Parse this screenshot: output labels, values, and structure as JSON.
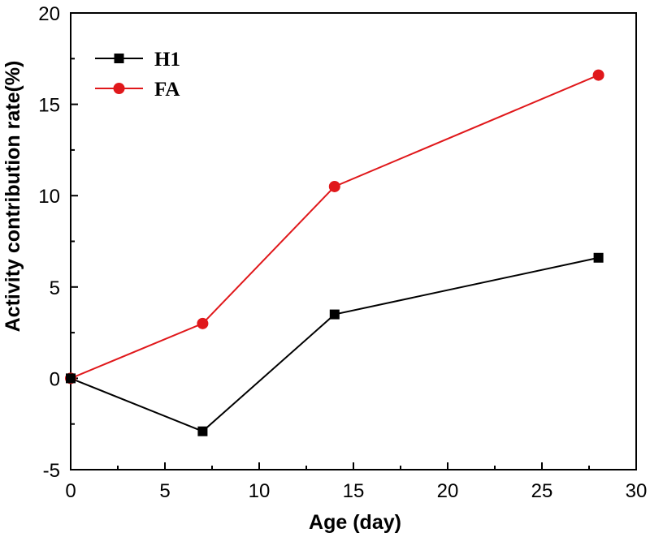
{
  "chart_data": {
    "type": "line",
    "xlabel": "Age (day)",
    "ylabel": "Activity contribution rate(%)",
    "xlim": [
      0,
      30
    ],
    "ylim": [
      -5,
      20
    ],
    "xticks": [
      0,
      5,
      10,
      15,
      20,
      25,
      30
    ],
    "yticks": [
      -5,
      0,
      5,
      10,
      15,
      20
    ],
    "grid": false,
    "legend_position": "top-left",
    "series": [
      {
        "name": "H1",
        "marker": "square",
        "color": "#000000",
        "x": [
          0,
          7,
          14,
          28
        ],
        "y": [
          0,
          -2.9,
          3.5,
          6.6
        ]
      },
      {
        "name": "FA",
        "marker": "circle",
        "color": "#e0181b",
        "x": [
          0,
          7,
          14,
          28
        ],
        "y": [
          0,
          3.0,
          10.5,
          16.6
        ]
      }
    ]
  }
}
